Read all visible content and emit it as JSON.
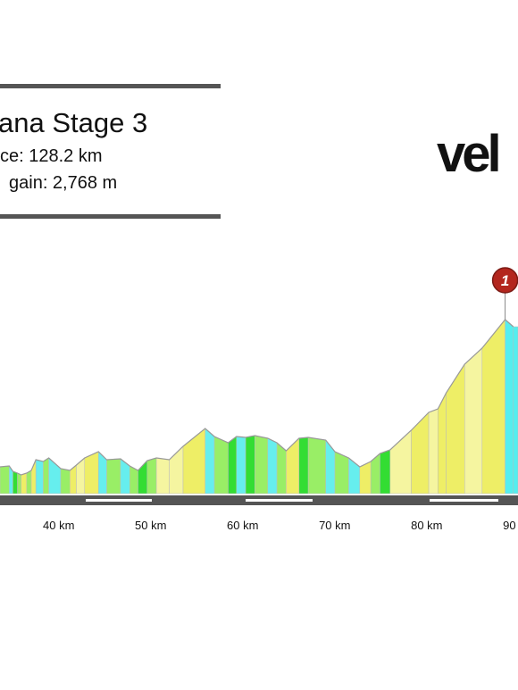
{
  "header": {
    "title": "ana Stage 3",
    "distance": "ce: 128.2 km",
    "gain": "gain: 2,768 m",
    "logo": "vel"
  },
  "chart_data": {
    "type": "area",
    "x": [
      33.3,
      34.3,
      34.7,
      35.2,
      35.6,
      36.2,
      36.7,
      37.2,
      38.0,
      38.6,
      39.9,
      40.9,
      41.6,
      42.5,
      44.0,
      44.9,
      46.4,
      47.4,
      48.3,
      49.3,
      50.3,
      51.7,
      53.2,
      55.6,
      56.6,
      58.1,
      59.0,
      60.0,
      61.0,
      62.4,
      63.4,
      64.4,
      65.8,
      66.8,
      68.7,
      69.7,
      71.2,
      72.4,
      73.6,
      74.6,
      75.7,
      78.0,
      79.9,
      80.9,
      81.8,
      83.8,
      85.7,
      88.2,
      89.1
    ],
    "values": [
      290,
      293,
      275,
      269,
      263,
      269,
      278,
      314,
      308,
      320,
      284,
      278,
      296,
      320,
      341,
      314,
      317,
      293,
      278,
      311,
      320,
      314,
      359,
      419,
      392,
      371,
      392,
      389,
      395,
      386,
      371,
      344,
      386,
      389,
      380,
      341,
      320,
      290,
      308,
      335,
      347,
      413,
      473,
      485,
      539,
      635,
      689,
      785,
      761
    ],
    "colors": [
      "#99ee66",
      "#66eeee",
      "#33dd33",
      "#99ee66",
      "#eeee66",
      "#99ee66",
      "#eeee66",
      "#66eeee",
      "#99ee66",
      "#66eeee",
      "#99ee66",
      "#eeee66",
      "#f5f5a0",
      "#eeee66",
      "#66eeee",
      "#99ee66",
      "#66eeee",
      "#99ee66",
      "#33dd33",
      "#99ee66",
      "#f5f5a0",
      "#f5f5a0",
      "#eeee66",
      "#66eeee",
      "#99ee66",
      "#33dd33",
      "#66eeee",
      "#33dd33",
      "#99ee66",
      "#66eeee",
      "#99ee66",
      "#eeee66",
      "#33dd33",
      "#99ee66",
      "#66eeee",
      "#99ee66",
      "#66eeee",
      "#eeee66",
      "#99ee66",
      "#33dd33",
      "#f5f5a0",
      "#eeee66",
      "#f5f5a0",
      "#eeee66",
      "#eeee66",
      "#f5f5a0",
      "#eeee66",
      "#55eeee",
      "#55eeee"
    ],
    "xlim": [
      33.3,
      89.6
    ],
    "ylim": [
      200,
      1000
    ],
    "xticks": [
      {
        "value": 40,
        "label": "40 km"
      },
      {
        "value": 50,
        "label": "50 km"
      },
      {
        "value": 60,
        "label": "60 km"
      },
      {
        "value": 70,
        "label": "70 km"
      },
      {
        "value": 80,
        "label": "80 km"
      },
      {
        "value": 90,
        "label": "90"
      }
    ],
    "annotations": [
      {
        "text": "1",
        "x": 88.2,
        "y": 785
      }
    ]
  }
}
